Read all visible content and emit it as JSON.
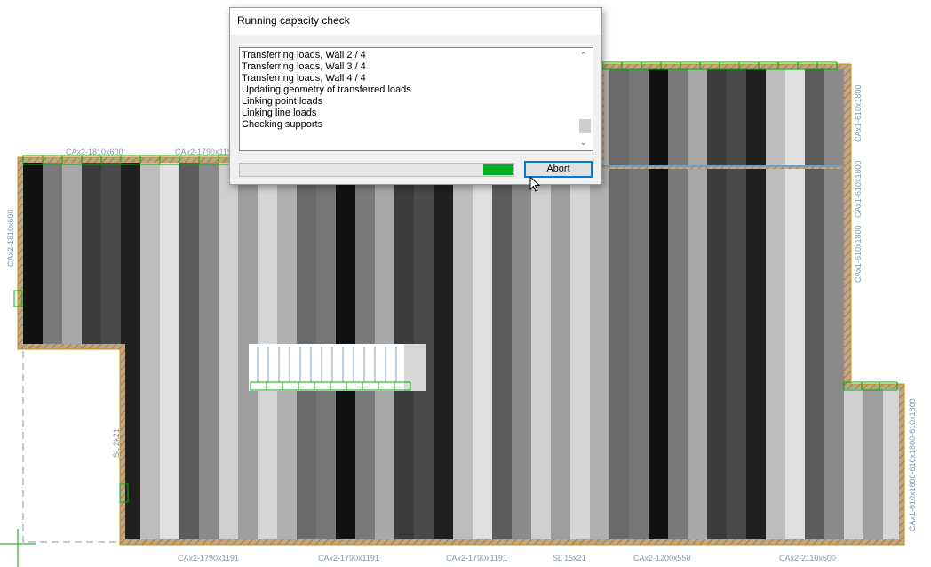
{
  "dialog": {
    "title": "Running capacity check",
    "log": [
      "Transferring loads, Wall  2 / 4",
      "Transferring loads, Wall  3 / 4",
      "Transferring loads, Wall  4 / 4",
      "Updating geometry of transferred loads",
      "Linking point loads",
      "Linking line loads",
      "Checking supports"
    ],
    "progress_style": "marquee",
    "progress_color": "#06b025",
    "abort_label": "Abort"
  },
  "plan": {
    "top_labels": [
      "CAx2-1810x600",
      "CAx2-1790x1191"
    ],
    "left_labels": [
      "CAx2-1810x600",
      "SL 2k21"
    ],
    "bottom_labels": [
      "CAx2-1790x1191",
      "CAx2-1790x1191",
      "CAx2-1790x1191",
      "SL 15x21",
      "CAx2-1200x550",
      "CAx2-2110x600"
    ],
    "right_labels": [
      "CAx1-610x1800",
      "CAx1-610x1800",
      "CAx1-610x1800",
      "CAx1-610x1800-610x1800-610x1800"
    ],
    "colors": {
      "wall": "#b8a070",
      "wall_edge": "#c8900a",
      "beam": "#00b000",
      "label": "#7f9bb5"
    }
  }
}
